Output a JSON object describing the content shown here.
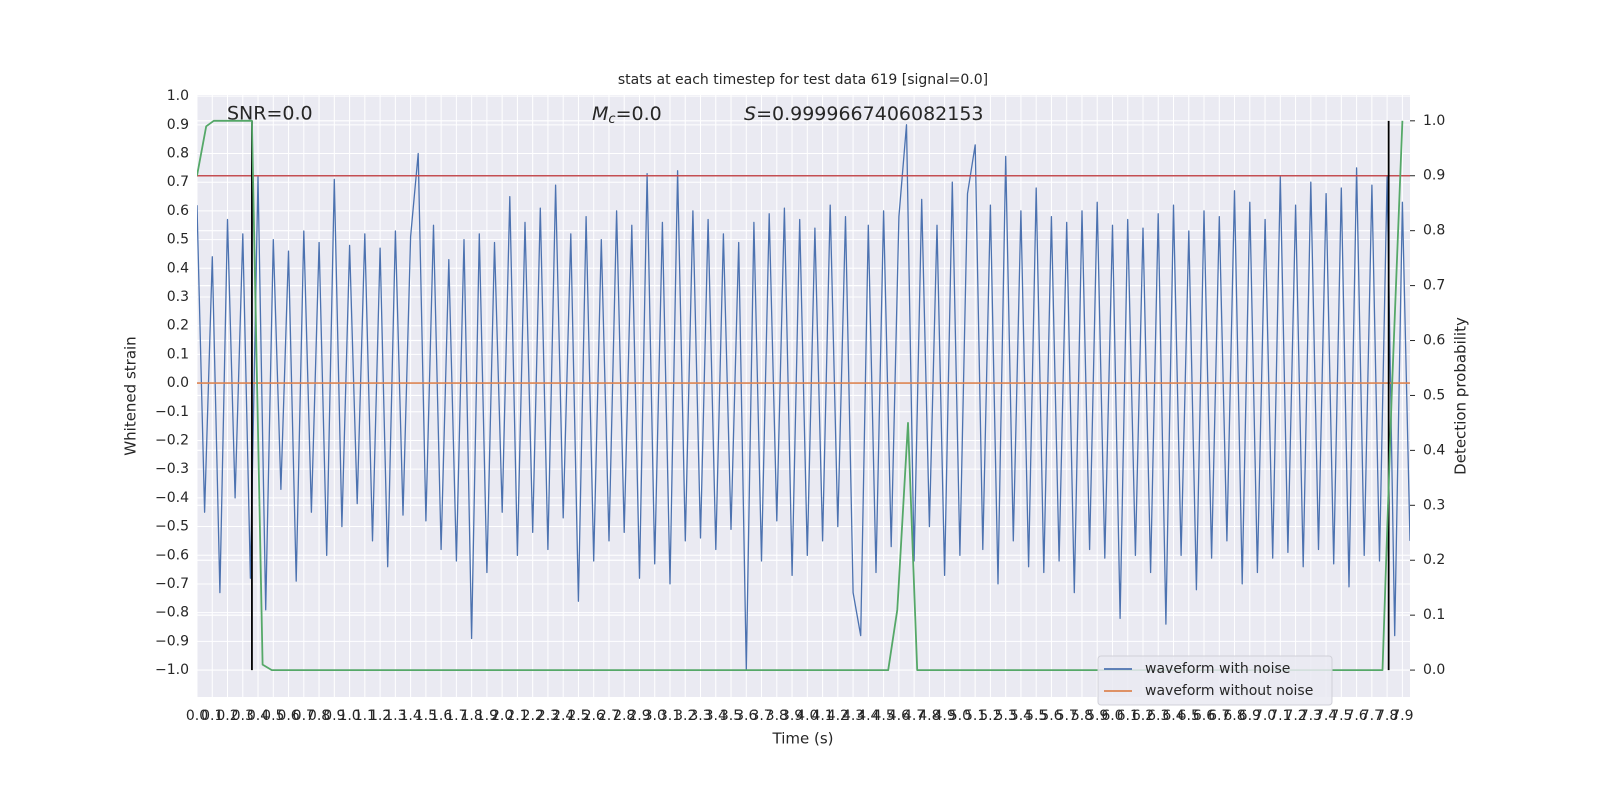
{
  "chart_data": {
    "type": "line",
    "title": "stats at each timestep for test data 619 [signal=0.0]",
    "x_label": "Time (s)",
    "y_label": "Whitened strain",
    "y2_label": "Detection probability",
    "annotations": [
      {
        "text": "SNR=0.0"
      },
      {
        "symbol": "M",
        "subscript": "c",
        "text": "=0.0"
      },
      {
        "symbol": "S",
        "text": "=0.9999667406082153"
      }
    ],
    "xlim": [
      0,
      7.95
    ],
    "ylim": [
      -1.094,
      1.004
    ],
    "y2lim": [
      -0.049,
      1.047
    ],
    "xticks": [
      {
        "value": 0,
        "label": "0.0"
      },
      0.1,
      0.2,
      0.3,
      0.4,
      0.5,
      0.6,
      0.7,
      0.8,
      0.9,
      {
        "value": 1,
        "label": "1.0"
      },
      1.1,
      1.2,
      1.3,
      1.4,
      1.5,
      1.6,
      1.7,
      1.8,
      1.9,
      {
        "value": 2,
        "label": "2.0"
      },
      2.1,
      2.2,
      2.3,
      2.4,
      2.5,
      2.6,
      2.7,
      2.8,
      2.9,
      {
        "value": 3,
        "label": "3.0"
      },
      3.1,
      3.2,
      3.3,
      3.4,
      3.5,
      3.6,
      3.7,
      3.8,
      3.9,
      {
        "value": 4,
        "label": "4.0"
      },
      4.1,
      4.2,
      4.3,
      4.4,
      4.5,
      4.6,
      4.7,
      4.8,
      4.9,
      {
        "value": 5,
        "label": "5.0"
      },
      5.1,
      5.2,
      5.3,
      5.4,
      5.5,
      5.6,
      5.7,
      5.8,
      5.9,
      {
        "value": 6,
        "label": "6.0"
      },
      6.1,
      6.2,
      6.3,
      6.4,
      6.5,
      6.6,
      6.7,
      6.8,
      6.9,
      {
        "value": 7,
        "label": "7.0"
      },
      7.1,
      7.2,
      7.3,
      7.4,
      7.5,
      7.6,
      7.7,
      7.8,
      7.9
    ],
    "yticks": [
      {
        "value": -1,
        "label": "−1.0"
      },
      {
        "value": -0.9,
        "label": "−0.9"
      },
      {
        "value": -0.8,
        "label": "−0.8"
      },
      {
        "value": -0.7,
        "label": "−0.7"
      },
      {
        "value": -0.6,
        "label": "−0.6"
      },
      {
        "value": -0.5,
        "label": "−0.5"
      },
      {
        "value": -0.4,
        "label": "−0.4"
      },
      {
        "value": -0.3,
        "label": "−0.3"
      },
      {
        "value": -0.2,
        "label": "−0.2"
      },
      {
        "value": -0.1,
        "label": "−0.1"
      },
      {
        "value": 0,
        "label": "0.0"
      },
      0.1,
      0.2,
      0.3,
      0.4,
      0.5,
      0.6,
      0.7,
      0.8,
      0.9,
      {
        "value": 1,
        "label": "1.0"
      }
    ],
    "y2ticks": [
      {
        "value": 0,
        "label": "0.0"
      },
      0.1,
      0.2,
      0.3,
      0.4,
      0.5,
      0.6,
      0.7,
      0.8,
      0.9,
      {
        "value": 1,
        "label": "1.0"
      }
    ],
    "grid": true,
    "legend": "lower right",
    "series": [
      {
        "name": "waveform with noise",
        "color": "#4c72b0",
        "x": [
          0,
          0.05,
          0.1,
          0.15,
          0.2,
          0.25,
          0.3,
          0.35,
          0.4,
          0.45,
          0.5,
          0.55,
          0.6,
          0.65,
          0.7,
          0.75,
          0.8,
          0.85,
          0.9,
          0.95,
          1,
          1.05,
          1.1,
          1.15,
          1.2,
          1.25,
          1.3,
          1.35,
          1.4,
          1.45,
          1.5,
          1.55,
          1.6,
          1.65,
          1.7,
          1.75,
          1.8,
          1.85,
          1.9,
          1.95,
          2,
          2.05,
          2.1,
          2.15,
          2.2,
          2.25,
          2.3,
          2.35,
          2.4,
          2.45,
          2.5,
          2.55,
          2.6,
          2.65,
          2.7,
          2.75,
          2.8,
          2.85,
          2.9,
          2.95,
          3,
          3.05,
          3.1,
          3.15,
          3.2,
          3.25,
          3.3,
          3.35,
          3.4,
          3.45,
          3.5,
          3.55,
          3.6,
          3.65,
          3.7,
          3.75,
          3.8,
          3.85,
          3.9,
          3.95,
          4,
          4.05,
          4.1,
          4.15,
          4.2,
          4.25,
          4.3,
          4.35,
          4.4,
          4.45,
          4.5,
          4.55,
          4.6,
          4.65,
          4.7,
          4.75,
          4.8,
          4.85,
          4.9,
          4.95,
          5,
          5.05,
          5.1,
          5.15,
          5.2,
          5.25,
          5.3,
          5.35,
          5.4,
          5.45,
          5.5,
          5.55,
          5.6,
          5.65,
          5.7,
          5.75,
          5.8,
          5.85,
          5.9,
          5.95,
          6,
          6.05,
          6.1,
          6.15,
          6.2,
          6.25,
          6.3,
          6.35,
          6.4,
          6.45,
          6.5,
          6.55,
          6.6,
          6.65,
          6.7,
          6.75,
          6.8,
          6.85,
          6.9,
          6.95,
          7,
          7.05,
          7.1,
          7.15,
          7.2,
          7.25,
          7.3,
          7.35,
          7.4,
          7.45,
          7.5,
          7.55,
          7.6,
          7.65,
          7.7,
          7.75,
          7.8,
          7.85,
          7.9,
          7.95
        ],
        "values": [
          0.62,
          -0.45,
          0.44,
          -0.73,
          0.57,
          -0.4,
          0.52,
          -0.68,
          0.72,
          -0.79,
          0.5,
          -0.37,
          0.46,
          -0.69,
          0.53,
          -0.45,
          0.49,
          -0.6,
          0.71,
          -0.5,
          0.48,
          -0.42,
          0.52,
          -0.55,
          0.47,
          -0.64,
          0.53,
          -0.46,
          0.51,
          0.8,
          -0.48,
          0.55,
          -0.58,
          0.43,
          -0.62,
          0.5,
          -0.89,
          0.52,
          -0.66,
          0.49,
          -0.45,
          0.65,
          -0.6,
          0.56,
          -0.52,
          0.61,
          -0.58,
          0.69,
          -0.47,
          0.52,
          -0.76,
          0.58,
          -0.62,
          0.5,
          -0.55,
          0.6,
          -0.52,
          0.55,
          -0.68,
          0.73,
          -0.63,
          0.56,
          -0.7,
          0.74,
          -0.55,
          0.6,
          -0.54,
          0.57,
          -0.58,
          0.52,
          -0.51,
          0.49,
          -1.0,
          0.56,
          -0.62,
          0.59,
          -0.48,
          0.61,
          -0.67,
          0.57,
          -0.6,
          0.54,
          -0.55,
          0.62,
          -0.5,
          0.58,
          -0.73,
          -0.88,
          0.55,
          -0.66,
          0.6,
          -0.57,
          0.58,
          0.9,
          -0.62,
          0.64,
          -0.5,
          0.55,
          -0.67,
          0.7,
          -0.6,
          0.66,
          0.83,
          -0.58,
          0.62,
          -0.7,
          0.79,
          -0.55,
          0.6,
          -0.64,
          0.68,
          -0.66,
          0.58,
          -0.62,
          0.56,
          -0.73,
          0.6,
          -0.58,
          0.63,
          -0.61,
          0.55,
          -0.82,
          0.57,
          -0.6,
          0.54,
          -0.66,
          0.59,
          -0.84,
          0.62,
          -0.6,
          0.53,
          -0.72,
          0.6,
          -0.61,
          0.58,
          -0.55,
          0.67,
          -0.7,
          0.63,
          -0.66,
          0.57,
          -0.61,
          0.72,
          -0.59,
          0.62,
          -0.64,
          0.7,
          -0.58,
          0.66,
          -0.63,
          0.68,
          -0.71,
          0.75,
          -0.6,
          0.69,
          -0.62,
          0.72,
          -0.88,
          0.63,
          -0.55
        ]
      },
      {
        "name": "waveform without noise",
        "color": "#dd8452",
        "x": [
          0,
          7.95
        ],
        "values": [
          0,
          0
        ]
      }
    ],
    "probability": {
      "color": "#55a868",
      "axis": "y2",
      "x": [
        0,
        0.06,
        0.11,
        0.36,
        0.43,
        0.49,
        4.53,
        4.59,
        4.66,
        4.72,
        7.77,
        7.83,
        7.9
      ],
      "values": [
        0.9,
        0.99,
        1.0,
        1.0,
        0.01,
        0.0,
        0.0,
        0.11,
        0.45,
        0.0,
        0.0,
        0.5,
        1.0
      ]
    },
    "threshold": {
      "value": 0.9,
      "axis": "y2",
      "color": "#c44e52"
    },
    "vlines": {
      "x": [
        0.36,
        7.81
      ],
      "ymin": 0,
      "ymax": 1,
      "axis": "y2",
      "color": "#000000"
    }
  }
}
